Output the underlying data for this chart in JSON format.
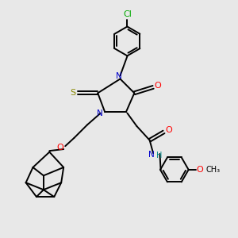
{
  "background_color": "#e8e8e8",
  "bond_color": "#000000",
  "N_color": "#0000cc",
  "O_color": "#ff0000",
  "S_color": "#888800",
  "Cl_color": "#00aa00",
  "NH_color": "#008888",
  "figsize": [
    3.0,
    3.0
  ],
  "dpi": 100,
  "xlim": [
    0,
    10
  ],
  "ylim": [
    0,
    10
  ]
}
